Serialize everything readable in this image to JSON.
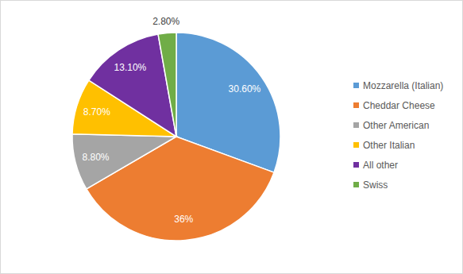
{
  "chart_data": {
    "type": "pie",
    "categories": [
      "Mozzarella (Italian)",
      "Cheddar Cheese",
      "Other American",
      "Other Italian",
      "All other",
      "Swiss"
    ],
    "values": [
      30.6,
      36,
      8.8,
      8.7,
      13.1,
      2.8
    ],
    "value_labels": [
      "30.60%",
      "36%",
      "8.80%",
      "8.70%",
      "13.10%",
      "2.80%"
    ],
    "colors": [
      "#5b9bd5",
      "#ed7d31",
      "#a5a5a5",
      "#ffc000",
      "#7030a0",
      "#70ad47"
    ],
    "data_labels": true,
    "legend": "right"
  }
}
